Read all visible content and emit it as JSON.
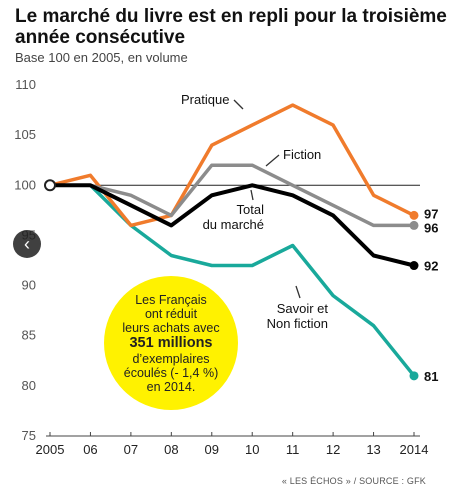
{
  "header": {
    "title": "Le marché du livre est en repli pour la troisième année consécutive",
    "subtitle": "Base 100 en 2005, en volume"
  },
  "bubble": {
    "line1": "Les Français",
    "line2": "ont réduit",
    "line3": "leurs achats avec",
    "highlight": "351 millions",
    "line4": "d’exemplaires",
    "line5": "écoulés (- 1,4 %)",
    "line6": "en 2014."
  },
  "source": "« LES ÉCHOS » / SOURCE : GFK",
  "nav": {
    "prev_icon": "‹"
  },
  "chart_data": {
    "type": "line",
    "x": [
      "2005",
      "06",
      "07",
      "08",
      "09",
      "10",
      "11",
      "12",
      "13",
      "2014"
    ],
    "ylim": [
      75,
      110
    ],
    "yticks": [
      75,
      80,
      85,
      90,
      95,
      100,
      105,
      110
    ],
    "baseline": 100,
    "series": [
      {
        "name": "Pratique",
        "color": "#f07b2c",
        "values": [
          100,
          101,
          96,
          97,
          104,
          106,
          108,
          106,
          99,
          97
        ],
        "end_label": "97"
      },
      {
        "name": "Fiction",
        "color": "#8c8c8c",
        "values": [
          100,
          100,
          99,
          97,
          102,
          102,
          100,
          98,
          96,
          96
        ],
        "end_label": "96"
      },
      {
        "name": "Total du marché",
        "color": "#000000",
        "values": [
          100,
          100,
          98,
          96,
          99,
          100,
          99,
          97,
          93,
          92
        ],
        "end_label": "92"
      },
      {
        "name": "Savoir et Non fiction",
        "color": "#19a99b",
        "values": [
          100,
          100,
          96,
          93,
          92,
          92,
          94,
          89,
          86,
          81
        ],
        "end_label": "81"
      }
    ]
  }
}
